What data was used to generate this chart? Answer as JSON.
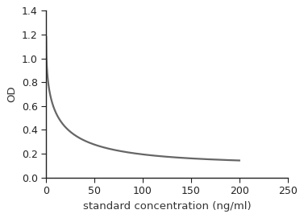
{
  "title": "",
  "xlabel": "standard concentration (ng/ml)",
  "ylabel": "OD",
  "xlim": [
    0,
    250
  ],
  "ylim": [
    0,
    1.4
  ],
  "xticks": [
    0,
    50,
    100,
    150,
    200,
    250
  ],
  "yticks": [
    0,
    0.2,
    0.4,
    0.6,
    0.8,
    1.0,
    1.2,
    1.4
  ],
  "line_color": "#666666",
  "line_width": 1.6,
  "curve_y_top": 1.18,
  "curve_y_min": 0.11,
  "curve_k": 0.32,
  "curve_power": 0.45,
  "background_color": "#ffffff",
  "spine_color": "#222222",
  "tick_fontsize": 9,
  "label_fontsize": 9.5,
  "tick_label_color": "#222222",
  "xlabel_color": "#333333",
  "ylabel_color": "#333333"
}
